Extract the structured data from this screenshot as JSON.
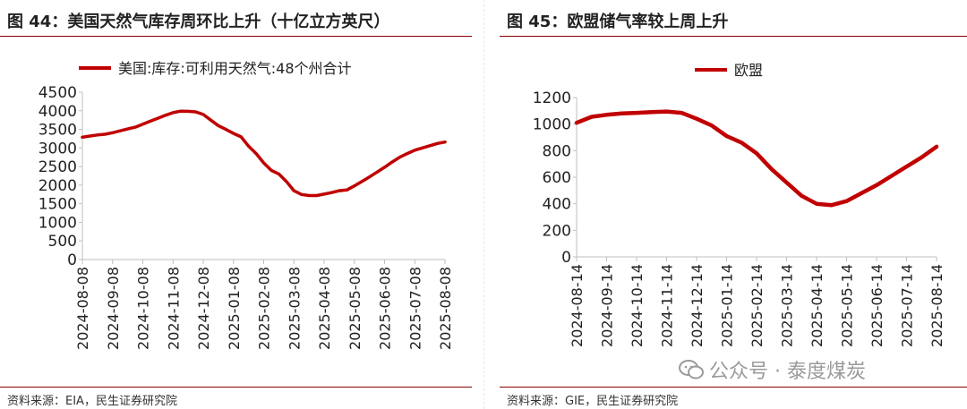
{
  "left": {
    "title": "图 44：美国天然气库存周环比上升（十亿立方英尺）",
    "source": "资料来源：EIA，民生证券研究院"
  },
  "right": {
    "title": "图 45：欧盟储气率较上周上升",
    "source": "资料来源：GIE，民生证券研究院"
  },
  "watermark": {
    "text": "公众号 · 泰度煤炭",
    "icon": "wechat-icon"
  },
  "colors": {
    "series": "#c00000",
    "rule": "#8b0000",
    "axis": "#bfbfbf"
  },
  "chart_data": [
    {
      "type": "line",
      "title": "美国天然气库存周环比上升（十亿立方英尺）",
      "legend": "美国:库存:可利用天然气:48个州合计",
      "legend_position": "top",
      "ylim": [
        0,
        4500
      ],
      "yticks": [
        0,
        500,
        1000,
        1500,
        2000,
        2500,
        3000,
        3500,
        4000,
        4500
      ],
      "xticks": [
        "2024-08-08",
        "2024-09-08",
        "2024-10-08",
        "2024-11-08",
        "2024-12-08",
        "2025-01-08",
        "2025-02-08",
        "2025-03-08",
        "2025-04-08",
        "2025-05-08",
        "2025-06-08",
        "2025-07-08",
        "2025-08-08"
      ],
      "x": [
        0,
        0.25,
        0.5,
        0.75,
        1,
        1.25,
        1.5,
        1.75,
        2,
        2.25,
        2.5,
        2.75,
        3,
        3.25,
        3.5,
        3.75,
        4,
        4.25,
        4.5,
        4.75,
        5,
        5.25,
        5.5,
        5.75,
        6,
        6.25,
        6.5,
        6.75,
        7,
        7.25,
        7.5,
        7.75,
        8,
        8.25,
        8.5,
        8.75,
        9,
        9.25,
        9.5,
        9.75,
        10,
        10.25,
        10.5,
        10.75,
        11,
        11.25,
        11.5,
        11.75,
        12
      ],
      "values": [
        3290,
        3320,
        3350,
        3370,
        3410,
        3460,
        3510,
        3560,
        3640,
        3720,
        3800,
        3880,
        3950,
        3990,
        3985,
        3970,
        3900,
        3750,
        3600,
        3500,
        3390,
        3300,
        3050,
        2850,
        2600,
        2400,
        2300,
        2100,
        1850,
        1750,
        1720,
        1720,
        1760,
        1800,
        1850,
        1870,
        1980,
        2100,
        2220,
        2350,
        2480,
        2620,
        2750,
        2850,
        2940,
        3000,
        3060,
        3120,
        3160
      ]
    },
    {
      "type": "line",
      "title": "欧盟储气率较上周上升",
      "legend": "欧盟",
      "legend_position": "top",
      "ylim": [
        0,
        1200
      ],
      "yticks": [
        0,
        200,
        400,
        600,
        800,
        1000,
        1200
      ],
      "xticks": [
        "2024-08-14",
        "2024-09-14",
        "2024-10-14",
        "2024-11-14",
        "2024-12-14",
        "2025-01-14",
        "2025-02-14",
        "2025-03-14",
        "2025-04-14",
        "2025-05-14",
        "2025-06-14",
        "2025-07-14",
        "2025-08-14"
      ],
      "x": [
        0,
        0.5,
        1,
        1.5,
        2,
        2.5,
        3,
        3.5,
        4,
        4.5,
        5,
        5.5,
        6,
        6.5,
        7,
        7.5,
        8,
        8.5,
        9,
        9.5,
        10,
        10.5,
        11,
        11.5,
        12
      ],
      "values": [
        1010,
        1055,
        1070,
        1080,
        1085,
        1090,
        1095,
        1085,
        1040,
        990,
        910,
        860,
        780,
        660,
        560,
        460,
        400,
        390,
        420,
        480,
        540,
        610,
        680,
        750,
        830
      ]
    }
  ]
}
